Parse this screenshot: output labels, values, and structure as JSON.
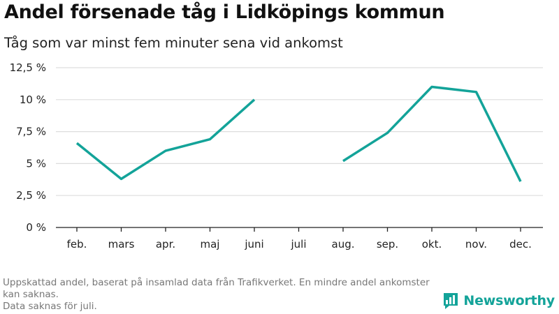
{
  "header": {
    "title": "Andel försenade tåg i Lidköpings kommun",
    "subtitle": "Tåg som var minst fem minuter sena vid ankomst"
  },
  "chart_data": {
    "type": "line",
    "title": "Andel försenade tåg i Lidköpings kommun",
    "subtitle": "Tåg som var minst fem minuter sena vid ankomst",
    "categories": [
      "feb.",
      "mars",
      "apr.",
      "maj",
      "juni",
      "juli",
      "aug.",
      "sep.",
      "okt.",
      "nov.",
      "dec."
    ],
    "series": [
      {
        "values": [
          6.6,
          3.8,
          6.0,
          6.9,
          10.0,
          null,
          5.2,
          7.4,
          11.0,
          10.6,
          3.6
        ]
      }
    ],
    "y_ticks": [
      0,
      2.5,
      5,
      7.5,
      10,
      12.5
    ],
    "y_tick_labels": [
      "0 %",
      "2,5 %",
      "5 %",
      "7,5 %",
      "10 %",
      "12,5 %"
    ],
    "ylim": [
      0,
      12.5
    ],
    "grid": "horizontal",
    "line_color": "#13a399"
  },
  "footer": {
    "note": "Uppskattad andel, baserat på insamlad data från Trafikverket. En mindre andel ankomster kan saknas.",
    "missing": "Data saknas för juli."
  },
  "brand": {
    "name": "Newsworthy",
    "logo_icon": "bar-chart-speech-bubble-icon",
    "color": "#13a399"
  }
}
